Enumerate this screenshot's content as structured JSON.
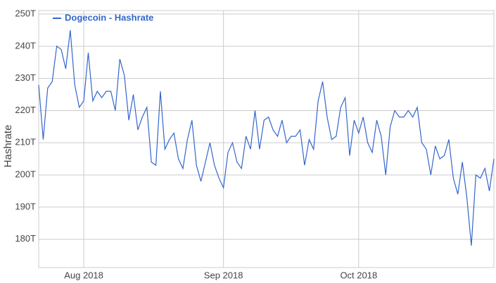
{
  "chart_data": {
    "type": "line",
    "y_label": "Hashrate",
    "legend": "top-left",
    "grid": true,
    "categories": [
      null,
      null,
      null,
      null,
      null,
      null,
      null,
      null,
      null,
      null,
      "Aug 2018",
      null,
      null,
      null,
      null,
      null,
      null,
      null,
      null,
      null,
      null,
      null,
      null,
      null,
      null,
      null,
      null,
      null,
      null,
      null,
      null,
      null,
      null,
      null,
      null,
      null,
      null,
      null,
      null,
      null,
      null,
      "Sep 2018",
      null,
      null,
      null,
      null,
      null,
      null,
      null,
      null,
      null,
      null,
      null,
      null,
      null,
      null,
      null,
      null,
      null,
      null,
      null,
      null,
      null,
      null,
      null,
      null,
      null,
      null,
      null,
      null,
      null,
      "Oct 2018",
      null,
      null,
      null,
      null,
      null,
      null,
      null,
      null,
      null,
      null,
      null,
      null,
      null,
      null,
      null,
      null,
      null,
      null,
      null,
      null,
      null,
      null,
      null,
      null,
      null,
      null,
      null,
      null,
      null,
      null
    ],
    "series": [
      {
        "name": "Dogecoin - Hashrate",
        "color": "#3366cc",
        "values": [
          228,
          211,
          227,
          229,
          240,
          239,
          233,
          245,
          228,
          221,
          223,
          238,
          223,
          226,
          224,
          226,
          226,
          220,
          236,
          231,
          217,
          225,
          214,
          218,
          221,
          204,
          203,
          226,
          208,
          211,
          213,
          205,
          202,
          211,
          217,
          203,
          198,
          204,
          210,
          203,
          199,
          196,
          207,
          210,
          204,
          202,
          212,
          208,
          220,
          208,
          217,
          218,
          214,
          212,
          217,
          210,
          212,
          212,
          214,
          203,
          211,
          208,
          223,
          229,
          218,
          211,
          212,
          221,
          224,
          206,
          217,
          213,
          218,
          210,
          207,
          217,
          212,
          200,
          215,
          220,
          218,
          218,
          220,
          218,
          221,
          210,
          208,
          200,
          209,
          205,
          206,
          211,
          199,
          194,
          204,
          193,
          178,
          200,
          199,
          202,
          195,
          205
        ]
      }
    ],
    "ylim": [
      171.2,
      251.1
    ],
    "yticks": [
      {
        "value": 180,
        "label": "180T"
      },
      {
        "value": 190,
        "label": "190T"
      },
      {
        "value": 200,
        "label": "200T"
      },
      {
        "value": 210,
        "label": "210T"
      },
      {
        "value": 220,
        "label": "220T"
      },
      {
        "value": 230,
        "label": "230T"
      },
      {
        "value": 240,
        "label": "240T"
      },
      {
        "value": 250,
        "label": "250T"
      }
    ]
  }
}
